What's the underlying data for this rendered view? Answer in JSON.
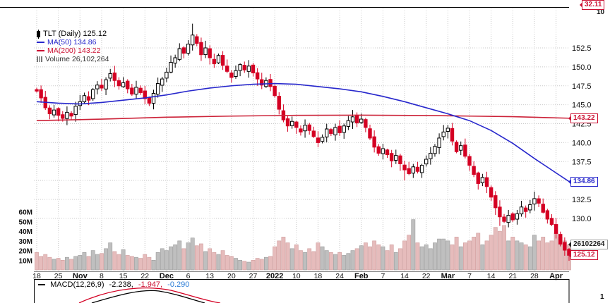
{
  "legend": {
    "symbol": "TLT (Daily) 125.12",
    "ma50": "MA(50) 134.86",
    "ma200": "MA(200) 143.22",
    "volume": "Volume 26,102,264"
  },
  "panes": {
    "rsi_partial": {
      "value_tag": "32.11",
      "axis_label": "10"
    },
    "macd": {
      "legend_prefix": "MACD(12,26,9)",
      "value_macd": "-2.238,",
      "value_signal": "-1.947,",
      "value_hist": "-0.290",
      "axis_label_partial": "1"
    }
  },
  "colors": {
    "down": "#d40023",
    "up_outline": "#000000",
    "ma50": "#2727cc",
    "ma200": "#cc2238",
    "grid": "#c9c9c9",
    "volume_up": "#bfbfbf",
    "volume_down": "#e6bcbc"
  },
  "price_tags": [
    {
      "text": "143.22",
      "value": 143.22,
      "color": "#cc1133"
    },
    {
      "text": "134.86",
      "value": 134.86,
      "color": "#2727cc"
    },
    {
      "text": "26102264",
      "volume_m": 26.1,
      "color": "#999999",
      "text_color": "#222222"
    },
    {
      "text": "125.12",
      "value": 125.12,
      "color": "#cc1133"
    }
  ],
  "chart_data": {
    "type": "candlestick+volume",
    "title": "TLT (Daily)",
    "last_price": 125.12,
    "first_open": 147.0,
    "price_ticks": [
      152.5,
      150.0,
      147.5,
      145.0,
      142.5,
      140.0,
      137.5,
      135.0,
      132.5,
      130.0
    ],
    "volume_ticks_m": [
      60,
      50,
      40,
      30,
      20,
      10
    ],
    "x_ticks": [
      {
        "i": 0,
        "label": "18",
        "bold": false
      },
      {
        "i": 5,
        "label": "25",
        "bold": false
      },
      {
        "i": 10,
        "label": "Nov",
        "bold": true
      },
      {
        "i": 15,
        "label": "8",
        "bold": false
      },
      {
        "i": 20,
        "label": "15",
        "bold": false
      },
      {
        "i": 25,
        "label": "22",
        "bold": false
      },
      {
        "i": 30,
        "label": "Dec",
        "bold": true
      },
      {
        "i": 35,
        "label": "6",
        "bold": false
      },
      {
        "i": 40,
        "label": "13",
        "bold": false
      },
      {
        "i": 45,
        "label": "20",
        "bold": false
      },
      {
        "i": 50,
        "label": "27",
        "bold": false
      },
      {
        "i": 55,
        "label": "2022",
        "bold": true
      },
      {
        "i": 60,
        "label": "10",
        "bold": false
      },
      {
        "i": 65,
        "label": "18",
        "bold": false
      },
      {
        "i": 70,
        "label": "24",
        "bold": false
      },
      {
        "i": 75,
        "label": "Feb",
        "bold": true
      },
      {
        "i": 80,
        "label": "7",
        "bold": false
      },
      {
        "i": 85,
        "label": "14",
        "bold": false
      },
      {
        "i": 90,
        "label": "22",
        "bold": false
      },
      {
        "i": 95,
        "label": "Mar",
        "bold": true
      },
      {
        "i": 100,
        "label": "7",
        "bold": false
      },
      {
        "i": 105,
        "label": "14",
        "bold": false
      },
      {
        "i": 110,
        "label": "21",
        "bold": false
      },
      {
        "i": 115,
        "label": "28",
        "bold": false
      },
      {
        "i": 120,
        "label": "Apr",
        "bold": true
      }
    ],
    "closes": [
      146.8,
      145.9,
      144.6,
      143.8,
      144.3,
      143.6,
      143.2,
      144.0,
      143.5,
      144.8,
      145.4,
      146.2,
      145.6,
      147.0,
      147.6,
      147.2,
      148.3,
      149.1,
      148.2,
      147.5,
      147.9,
      147.1,
      146.4,
      147.3,
      146.6,
      145.8,
      145.2,
      146.5,
      147.8,
      148.4,
      149.3,
      150.6,
      151.2,
      152.4,
      151.8,
      153.0,
      154.2,
      153.1,
      151.6,
      152.5,
      151.2,
      150.4,
      151.5,
      150.2,
      149.4,
      148.6,
      149.5,
      150.3,
      149.6,
      150.1,
      149.2,
      148.4,
      147.6,
      148.2,
      147.4,
      146.2,
      144.4,
      143.0,
      142.2,
      142.8,
      142.0,
      141.4,
      142.3,
      141.6,
      140.8,
      140.0,
      140.7,
      141.8,
      141.2,
      142.0,
      141.3,
      142.2,
      142.9,
      143.4,
      142.6,
      143.1,
      142.0,
      140.6,
      139.4,
      138.6,
      139.2,
      138.4,
      137.6,
      138.3,
      137.2,
      136.4,
      135.9,
      136.8,
      136.2,
      137.0,
      137.8,
      138.6,
      139.5,
      140.6,
      141.4,
      141.9,
      140.2,
      138.8,
      139.6,
      138.2,
      137.0,
      135.8,
      134.6,
      135.4,
      134.2,
      132.8,
      131.4,
      130.2,
      129.6,
      130.4,
      129.8,
      130.6,
      131.5,
      130.9,
      131.8,
      132.6,
      132.0,
      130.8,
      129.9,
      129.2,
      128.0,
      126.6,
      125.8,
      125.12
    ],
    "volumes_m": [
      18,
      14,
      16,
      13,
      11,
      12,
      10,
      13,
      11,
      14,
      15,
      18,
      14,
      20,
      16,
      17,
      22,
      28,
      19,
      16,
      21,
      15,
      14,
      13,
      12,
      16,
      13,
      10,
      18,
      22,
      20,
      24,
      26,
      30,
      22,
      28,
      33,
      25,
      27,
      19,
      22,
      18,
      16,
      20,
      15,
      14,
      12,
      10,
      9,
      8,
      10,
      12,
      11,
      13,
      14,
      24,
      30,
      34,
      28,
      22,
      26,
      20,
      18,
      22,
      19,
      28,
      24,
      20,
      18,
      16,
      18,
      15,
      17,
      20,
      22,
      25,
      28,
      24,
      30,
      26,
      24,
      20,
      26,
      18,
      22,
      30,
      36,
      52,
      28,
      24,
      26,
      22,
      28,
      32,
      32,
      30,
      26,
      34,
      24,
      28,
      30,
      34,
      38,
      26,
      30,
      36,
      44,
      40,
      46,
      30,
      34,
      30,
      28,
      26,
      24,
      36,
      30,
      34,
      28,
      30,
      38,
      34,
      30,
      26.1
    ],
    "wick_overrides": {
      "36": {
        "h": 155.7
      },
      "85": {
        "l": 135.0
      },
      "107": {
        "l": 129.0
      },
      "123": {
        "l": 124.4
      }
    },
    "ma50_points": [
      [
        0,
        145.4
      ],
      [
        5,
        145.2
      ],
      [
        10,
        145.1
      ],
      [
        15,
        145.3
      ],
      [
        20,
        145.6
      ],
      [
        25,
        145.9
      ],
      [
        30,
        146.3
      ],
      [
        35,
        146.8
      ],
      [
        40,
        147.2
      ],
      [
        45,
        147.5
      ],
      [
        50,
        147.7
      ],
      [
        55,
        147.8
      ],
      [
        60,
        147.7
      ],
      [
        65,
        147.4
      ],
      [
        70,
        147.1
      ],
      [
        75,
        146.7
      ],
      [
        80,
        146.1
      ],
      [
        85,
        145.4
      ],
      [
        90,
        144.6
      ],
      [
        95,
        143.8
      ],
      [
        100,
        142.9
      ],
      [
        105,
        141.6
      ],
      [
        110,
        139.9
      ],
      [
        115,
        137.9
      ],
      [
        120,
        136.0
      ],
      [
        123,
        134.86
      ]
    ],
    "ma200_points": [
      [
        0,
        142.9
      ],
      [
        15,
        143.1
      ],
      [
        30,
        143.35
      ],
      [
        45,
        143.5
      ],
      [
        60,
        143.6
      ],
      [
        75,
        143.62
      ],
      [
        90,
        143.58
      ],
      [
        100,
        143.5
      ],
      [
        110,
        143.42
      ],
      [
        118,
        143.3
      ],
      [
        123,
        143.22
      ]
    ]
  }
}
